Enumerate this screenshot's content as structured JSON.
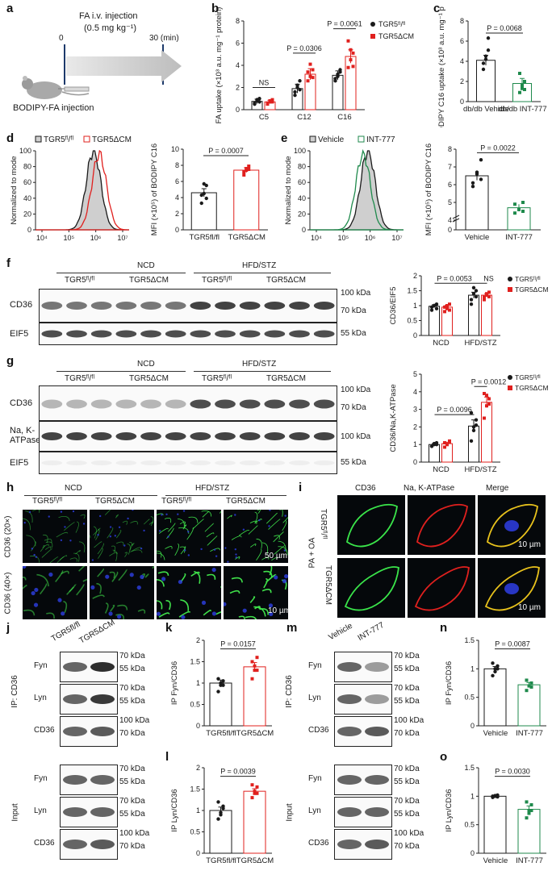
{
  "figure": {
    "panel_labels": [
      "a",
      "b",
      "c",
      "d",
      "e",
      "f",
      "g",
      "h",
      "i",
      "j",
      "k",
      "l",
      "m",
      "n",
      "o"
    ]
  },
  "panel_a": {
    "time_start": "0",
    "time_end": "30 (min)",
    "injection_line1": "FA i.v. injection",
    "injection_line2": "(0.5 mg kg⁻¹)",
    "mouse_label": "BODIPY-FA injection"
  },
  "legend": {
    "fl": "TGR5ᶠˡ/ᶠˡ",
    "cm": "TGR5ΔCM"
  },
  "colors": {
    "fl": "#1a1a1a",
    "cm": "#e0201e",
    "vehicle": "#1a1a1a",
    "int777": "#1f8a4c",
    "hist_fill": "#cfcfcf"
  },
  "chart_data": [
    {
      "id": "b",
      "type": "bar",
      "ylabel": "FA uptake (×10³ a.u. mg⁻¹ protein)",
      "categories": [
        "C5",
        "C12",
        "C16"
      ],
      "ylim": [
        0,
        8
      ],
      "yticks": [
        0,
        2,
        4,
        6,
        8
      ],
      "series": [
        {
          "name": "TGR5fl/fl",
          "values": [
            0.75,
            1.9,
            3.1
          ],
          "sem": [
            0.2,
            0.4,
            0.4
          ],
          "points": [
            [
              0.5,
              0.8,
              1.0,
              0.6,
              0.9,
              0.7
            ],
            [
              1.3,
              2.0,
              2.6,
              1.6,
              2.2,
              1.8
            ],
            [
              2.6,
              3.0,
              3.6,
              2.8,
              3.2,
              3.4
            ]
          ]
        },
        {
          "name": "TGR5ΔCM",
          "values": [
            0.7,
            3.2,
            4.8
          ],
          "sem": [
            0.15,
            0.5,
            0.6
          ],
          "points": [
            [
              0.5,
              0.7,
              0.9,
              0.6,
              0.8,
              0.7
            ],
            [
              2.6,
              3.0,
              3.6,
              3.4,
              4.1,
              2.9
            ],
            [
              3.8,
              4.5,
              5.1,
              6.2,
              5.4,
              3.9
            ]
          ]
        }
      ],
      "annotations": [
        {
          "text": "NS",
          "cat": 0,
          "y": 2.0
        },
        {
          "text": "P = 0.0306",
          "cat": 1,
          "y": 5.1
        },
        {
          "text": "P = 0.0061",
          "cat": 2,
          "y": 7.3
        }
      ]
    },
    {
      "id": "c",
      "type": "bar",
      "ylabel": "BODIPY C16 uptake (×10³ a.u. mg⁻¹ protein)",
      "categories": [
        "db/db Vehicle",
        "db/db INT-777"
      ],
      "ylim": [
        0,
        8
      ],
      "yticks": [
        0,
        2,
        4,
        6,
        8
      ],
      "values": [
        4.1,
        1.8
      ],
      "sem": [
        0.5,
        0.5
      ],
      "colors": [
        "#1a1a1a",
        "#1f8a4c"
      ],
      "points": [
        [
          3.2,
          4.5,
          5.1,
          3.8,
          4.2,
          6.3
        ],
        [
          0.9,
          1.3,
          2.0,
          2.8,
          1.6,
          1.2
        ]
      ],
      "annotation": "P = 0.0068"
    },
    {
      "id": "d_hist",
      "type": "area",
      "ylabel": "Normalized to mode",
      "ylim": [
        0,
        100
      ],
      "yticks": [
        0,
        20,
        40,
        60,
        80,
        100
      ],
      "xticks": [
        "10⁴",
        "10⁵",
        "10⁶",
        "10⁷"
      ],
      "series": [
        "TGR5fl/fl",
        "TGR5ΔCM"
      ]
    },
    {
      "id": "d_bar",
      "type": "bar",
      "ylabel": "MFI (×10⁵) of BODIPY C16",
      "categories": [
        "TGR5fl/fl",
        "TGR5ΔCM"
      ],
      "ylim": [
        0,
        10
      ],
      "yticks": [
        0,
        2,
        4,
        6,
        8,
        10
      ],
      "values": [
        4.6,
        7.4
      ],
      "sem": [
        0.5,
        0.3
      ],
      "points": [
        [
          3.3,
          4.5,
          5.5,
          4.3,
          5.7,
          3.9
        ],
        [
          6.8,
          7.4,
          7.9,
          7.2,
          7.6,
          7.5
        ]
      ],
      "annotation": "P = 0.0007"
    },
    {
      "id": "e_hist",
      "type": "area",
      "ylabel": "Normalized to mode",
      "ylim": [
        0,
        100
      ],
      "yticks": [
        0,
        20,
        40,
        60,
        80,
        100
      ],
      "xticks": [
        "10⁴",
        "10⁵",
        "10⁶",
        "10⁷"
      ],
      "series": [
        "Vehicle",
        "INT-777"
      ]
    },
    {
      "id": "e_bar",
      "type": "bar",
      "ylabel": "MFI (×10⁵) of BODIPY C16",
      "categories": [
        "Vehicle",
        "INT-777"
      ],
      "ylim": [
        0,
        8
      ],
      "yticks": [
        0,
        4,
        5,
        6,
        7,
        8
      ],
      "values": [
        6.5,
        4.7
      ],
      "sem": [
        0.25,
        0.2
      ],
      "points": [
        [
          6.1,
          6.6,
          7.4,
          5.9,
          6.7,
          6.3
        ],
        [
          4.4,
          4.6,
          5.0,
          4.9,
          4.6,
          4.5
        ]
      ],
      "annotation": "P = 0.0022"
    },
    {
      "id": "f_bar",
      "type": "bar",
      "ylabel": "CD36/EIF5",
      "categories": [
        "NCD",
        "HFD/STZ"
      ],
      "ylim": [
        0,
        2.0
      ],
      "yticks": [
        0,
        0.5,
        1.0,
        1.5,
        2.0
      ],
      "series": [
        {
          "name": "TGR5fl/fl",
          "values": [
            0.98,
            1.35
          ],
          "sem": [
            0.05,
            0.1
          ],
          "points": [
            [
              0.85,
              1.0,
              1.05,
              0.95,
              1.0,
              0.9
            ],
            [
              1.05,
              1.4,
              1.5,
              1.2,
              1.6,
              1.3
            ]
          ]
        },
        {
          "name": "TGR5ΔCM",
          "values": [
            0.95,
            1.35
          ],
          "sem": [
            0.06,
            0.05
          ],
          "points": [
            [
              0.8,
              0.9,
              1.05,
              0.95,
              1.0,
              0.85
            ],
            [
              1.2,
              1.35,
              1.45,
              1.3,
              1.4,
              1.3
            ]
          ]
        }
      ],
      "annotations": [
        "P = 0.0053",
        "NS"
      ]
    },
    {
      "id": "g_bar",
      "type": "bar",
      "ylabel": "CD36/Na,K-ATPase",
      "categories": [
        "NCD",
        "HFD/STZ"
      ],
      "ylim": [
        0,
        5
      ],
      "yticks": [
        0,
        1,
        2,
        3,
        4,
        5
      ],
      "series": [
        {
          "name": "TGR5fl/fl",
          "values": [
            1.0,
            2.05
          ],
          "sem": [
            0.05,
            0.35
          ],
          "points": [
            [
              0.9,
              1.0,
              1.1,
              0.9,
              1.05,
              1.0
            ],
            [
              1.2,
              1.8,
              2.4,
              2.8,
              2.0,
              2.1
            ]
          ]
        },
        {
          "name": "TGR5ΔCM",
          "values": [
            1.05,
            3.4
          ],
          "sem": [
            0.08,
            0.3
          ],
          "points": [
            [
              0.85,
              1.0,
              1.2,
              1.1,
              1.0,
              1.15
            ],
            [
              2.5,
              3.2,
              3.6,
              3.9,
              3.8,
              3.3
            ]
          ]
        }
      ],
      "annotations": [
        "P = 0.0096",
        "P = 0.0012"
      ]
    },
    {
      "id": "k",
      "type": "bar",
      "ylabel": "IP Fyn/CD36",
      "categories": [
        "TGR5fl/fl",
        "TGR5ΔCM"
      ],
      "ylim": [
        0,
        2.0
      ],
      "yticks": [
        0,
        0.5,
        1.0,
        1.5,
        2.0
      ],
      "values": [
        1.0,
        1.38
      ],
      "sem": [
        0.07,
        0.1
      ],
      "colors": [
        "#1a1a1a",
        "#e0201e"
      ],
      "points": [
        [
          0.8,
          0.95,
          1.05,
          1.1,
          1.0,
          0.95
        ],
        [
          1.1,
          1.3,
          1.6,
          1.5,
          1.4,
          1.3
        ]
      ],
      "annotation": "P = 0.0157"
    },
    {
      "id": "l",
      "type": "bar",
      "ylabel": "IP Lyn/CD36",
      "categories": [
        "TGR5fl/fl",
        "TGR5ΔCM"
      ],
      "ylim": [
        0,
        2.0
      ],
      "yticks": [
        0,
        0.5,
        1.0,
        1.5,
        2.0
      ],
      "values": [
        1.0,
        1.45
      ],
      "sem": [
        0.08,
        0.06
      ],
      "colors": [
        "#1a1a1a",
        "#e0201e"
      ],
      "points": [
        [
          0.8,
          0.95,
          1.1,
          1.2,
          0.9,
          1.05
        ],
        [
          1.3,
          1.45,
          1.55,
          1.6,
          1.4,
          1.4
        ]
      ],
      "annotation": "P = 0.0039"
    },
    {
      "id": "n",
      "type": "bar",
      "ylabel": "IP Fyn/CD36",
      "categories": [
        "Vehicle",
        "INT-777"
      ],
      "ylim": [
        0,
        1.5
      ],
      "yticks": [
        0,
        0.5,
        1.0,
        1.5
      ],
      "values": [
        1.0,
        0.72
      ],
      "sem": [
        0.04,
        0.04
      ],
      "colors": [
        "#1a1a1a",
        "#1f8a4c"
      ],
      "points": [
        [
          0.88,
          1.0,
          1.05,
          1.1,
          0.95,
          1.0
        ],
        [
          0.62,
          0.7,
          0.75,
          0.8,
          0.7,
          0.68
        ]
      ],
      "annotation": "P = 0.0087"
    },
    {
      "id": "o",
      "type": "bar",
      "ylabel": "IP Lyn/CD36",
      "categories": [
        "Vehicle",
        "INT-777"
      ],
      "ylim": [
        0,
        1.5
      ],
      "yticks": [
        0,
        0.5,
        1.0,
        1.5
      ],
      "values": [
        1.0,
        0.77
      ],
      "sem": [
        0.02,
        0.06
      ],
      "colors": [
        "#1a1a1a",
        "#1f8a4c"
      ],
      "points": [
        [
          0.98,
          1.0,
          1.02,
          1.0,
          1.01,
          0.99
        ],
        [
          0.62,
          0.75,
          0.85,
          0.9,
          0.7,
          0.75
        ]
      ],
      "annotation": "P = 0.0030"
    }
  ],
  "blots": {
    "f": {
      "groups": [
        "NCD",
        "HFD/STZ"
      ],
      "rows": [
        "CD36",
        "EIF5"
      ],
      "mw": [
        "100 kDa",
        "70 kDa",
        "55 kDa"
      ]
    },
    "g": {
      "groups": [
        "NCD",
        "HFD/STZ"
      ],
      "rows": [
        "CD36",
        "Na, K-ATPase",
        "EIF5"
      ],
      "mw": [
        "100 kDa",
        "70 kDa",
        "100 kDa",
        "55 kDa"
      ]
    },
    "j": {
      "ip_label": "IP: CD36",
      "input_label": "Input",
      "rows": [
        "Fyn",
        "Lyn",
        "CD36",
        "Fyn",
        "Lyn",
        "CD36"
      ],
      "cols": [
        "TGR5fl/fl",
        "TGR5ΔCM"
      ]
    },
    "m": {
      "ip_label": "IP: CD36",
      "input_label": "Input",
      "rows": [
        "Fyn",
        "Lyn",
        "CD36",
        "Fyn",
        "Lyn",
        "CD36"
      ],
      "cols": [
        "Vehicle",
        "INT-777"
      ]
    },
    "mw_pair_a": [
      "70 kDa",
      "55 kDa"
    ],
    "mw_pair_b": [
      "100 kDa",
      "70 kDa"
    ]
  },
  "histology": {
    "groups": [
      "NCD",
      "HFD/STZ"
    ],
    "row_labels": [
      "CD36 (20×)",
      "CD36 (40×)"
    ],
    "scale_20x": "50 µm",
    "scale_40x": "10 µm"
  },
  "confocal": {
    "cols": [
      "CD36",
      "Na, K-ATPase",
      "Merge"
    ],
    "treatment": "PA + OA",
    "scale": "10 µm"
  }
}
